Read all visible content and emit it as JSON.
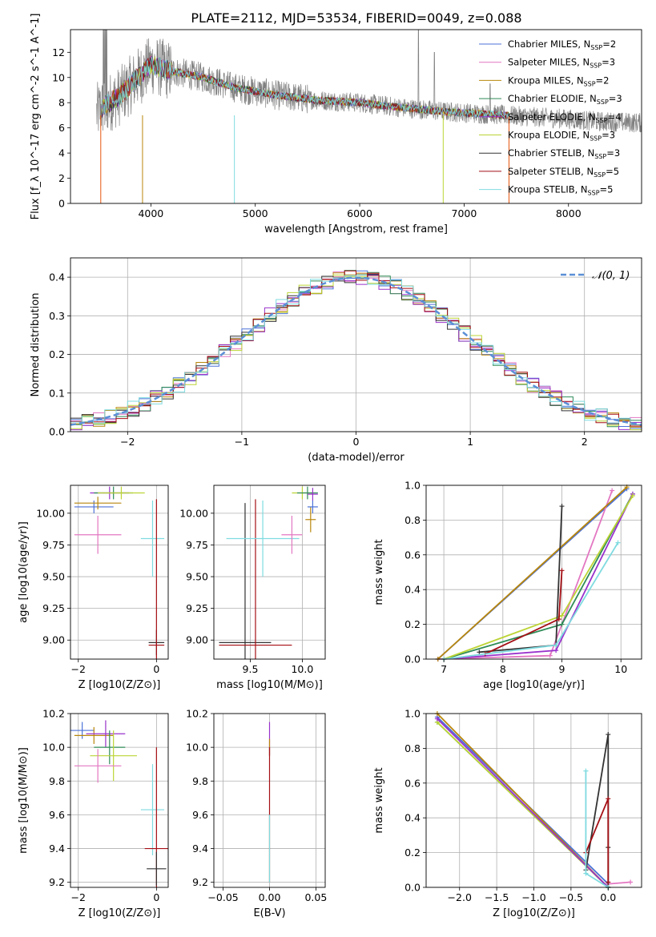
{
  "figure": {
    "title": "PLATE=2112, MJD=53534, FIBERID=0049, z=0.088"
  },
  "legend": {
    "fit_entries": [
      {
        "name": "Chabrier MILES, N",
        "sub": "SSP",
        "suffix": "=2",
        "color": "#4c72d8"
      },
      {
        "name": "Salpeter MILES, N",
        "sub": "SSP",
        "suffix": "=3",
        "color": "#e377c2"
      },
      {
        "name": "Kroupa MILES, N",
        "sub": "SSP",
        "suffix": "=2",
        "color": "#b8860b"
      },
      {
        "name": "Chabrier ELODIE, N",
        "sub": "SSP",
        "suffix": "=3",
        "color": "#2e8b57"
      },
      {
        "name": "Salpeter ELODIE, N",
        "sub": "SSP",
        "suffix": "=4",
        "color": "#9932cc"
      },
      {
        "name": "Kroupa ELODIE, N",
        "sub": "SSP",
        "suffix": "=3",
        "color": "#bcd435"
      },
      {
        "name": "Chabrier STELIB, N",
        "sub": "SSP",
        "suffix": "=3",
        "color": "#333333"
      },
      {
        "name": "Salpeter STELIB, N",
        "sub": "SSP",
        "suffix": "=5",
        "color": "#a50f15"
      },
      {
        "name": "Kroupa STELIB, N",
        "sub": "SSP",
        "suffix": "=5",
        "color": "#7fdbe0"
      }
    ],
    "normal_label": "𝒩(0, 1)"
  },
  "chart_data": [
    {
      "id": "spectrum",
      "type": "line",
      "title": "PLATE=2112, MJD=53534, FIBERID=0049, z=0.088",
      "xlabel": "wavelength [Angstrom, rest frame]",
      "ylabel": "Flux [f_λ 10^-17 erg cm^-2 s^-1 A^-1]",
      "xlim": [
        3230,
        8700
      ],
      "ylim": [
        0,
        13.8
      ],
      "xticks": [
        4000,
        5000,
        6000,
        7000,
        8000
      ],
      "yticks": [
        0,
        2,
        4,
        6,
        8,
        10,
        12
      ],
      "data_color": "#808080",
      "continuum": [
        [
          3480,
          7.2
        ],
        [
          3560,
          7.8
        ],
        [
          3700,
          8.5
        ],
        [
          3850,
          9.8
        ],
        [
          4000,
          11.0
        ],
        [
          4200,
          10.5
        ],
        [
          4500,
          10.0
        ],
        [
          4800,
          9.2
        ],
        [
          5200,
          8.6
        ],
        [
          5600,
          8.2
        ],
        [
          6000,
          8.0
        ],
        [
          6400,
          7.6
        ],
        [
          6800,
          7.3
        ],
        [
          7200,
          7.1
        ],
        [
          7600,
          6.9
        ],
        [
          8000,
          6.7
        ],
        [
          8300,
          6.5
        ],
        [
          8700,
          6.4
        ]
      ],
      "model_x_range": [
        3530,
        7430
      ],
      "legend": "upper right",
      "grid": false
    },
    {
      "id": "residuals",
      "type": "step",
      "xlabel": "(data-model)/error",
      "ylabel": "Normed distribution",
      "xlim": [
        -2.5,
        2.5
      ],
      "ylim": [
        0,
        0.45
      ],
      "xticks": [
        -2,
        -1,
        0,
        1,
        2
      ],
      "yticks": [
        0.0,
        0.1,
        0.2,
        0.3,
        0.4
      ],
      "n_bins": 50,
      "normal": {
        "mean": 0,
        "sigma": 1,
        "color": "#5b8fd6",
        "label": "𝒩(0, 1)"
      },
      "grid": true
    },
    {
      "id": "age_vs_Z",
      "type": "errorbar",
      "xlabel": "Z [log10(Z/Z⊙)]",
      "ylabel": "age [log10(age/yr)]",
      "xlim": [
        -2.2,
        0.3
      ],
      "ylim": [
        8.85,
        10.22
      ],
      "xticks": [
        -2,
        0
      ],
      "yticks": [
        9.0,
        9.25,
        9.5,
        9.75,
        10.0
      ],
      "points": [
        {
          "series": 0,
          "x": -1.6,
          "y": 10.05,
          "xerr": 0.5,
          "yerr": 0.05
        },
        {
          "series": 2,
          "x": -1.5,
          "y": 10.08,
          "xerr": 0.6,
          "yerr": 0.05
        },
        {
          "series": 1,
          "x": -1.5,
          "y": 9.83,
          "xerr": 0.6,
          "yerr": 0.15
        },
        {
          "series": 4,
          "x": -1.2,
          "y": 10.16,
          "xerr": 0.5,
          "yerr": 0.05
        },
        {
          "series": 3,
          "x": -1.1,
          "y": 10.16,
          "xerr": 0.5,
          "yerr": 0.05
        },
        {
          "series": 5,
          "x": -0.9,
          "y": 10.16,
          "xerr": 0.6,
          "yerr": 0.05
        },
        {
          "series": 8,
          "x": -0.1,
          "y": 9.8,
          "xerr": 0.3,
          "yerr": 0.3
        },
        {
          "series": 6,
          "x": 0.0,
          "y": 8.98,
          "xerr": 0.2,
          "yerr": 0.1
        },
        {
          "series": 7,
          "x": 0.0,
          "y": 8.96,
          "xerr": 0.2,
          "yerr": 1.15
        }
      ],
      "grid": true
    },
    {
      "id": "age_vs_mass",
      "type": "errorbar",
      "xlabel": "mass [log10(M/M⊙)]",
      "ylabel": "",
      "xlim": [
        9.15,
        10.22
      ],
      "ylim": [
        8.85,
        10.22
      ],
      "xticks": [
        9.5,
        10.0
      ],
      "yticks": [
        9.0,
        9.25,
        9.5,
        9.75,
        10.0
      ],
      "points": [
        {
          "series": 6,
          "x": 9.45,
          "y": 8.98,
          "xerr": 0.25,
          "yerr": 1.1
        },
        {
          "series": 7,
          "x": 9.55,
          "y": 8.96,
          "xerr": 0.35,
          "yerr": 1.15
        },
        {
          "series": 8,
          "x": 9.62,
          "y": 9.8,
          "xerr": 0.35,
          "yerr": 0.3
        },
        {
          "series": 1,
          "x": 9.9,
          "y": 9.83,
          "xerr": 0.1,
          "yerr": 0.15
        },
        {
          "series": 2,
          "x": 10.08,
          "y": 9.95,
          "xerr": 0.05,
          "yerr": 0.1
        },
        {
          "series": 5,
          "x": 10.0,
          "y": 10.16,
          "xerr": 0.1,
          "yerr": 0.05
        },
        {
          "series": 3,
          "x": 10.05,
          "y": 10.16,
          "xerr": 0.1,
          "yerr": 0.05
        },
        {
          "series": 0,
          "x": 10.1,
          "y": 10.05,
          "xerr": 0.05,
          "yerr": 0.05
        },
        {
          "series": 4,
          "x": 10.1,
          "y": 10.15,
          "xerr": 0.05,
          "yerr": 0.05
        }
      ],
      "grid": true
    },
    {
      "id": "weight_vs_age",
      "type": "line",
      "xlabel": "age [log10(age/yr)]",
      "ylabel": "mass weight",
      "xlim": [
        6.7,
        10.35
      ],
      "ylim": [
        0,
        1.0
      ],
      "xticks": [
        7,
        8,
        9,
        10
      ],
      "yticks": [
        0.0,
        0.2,
        0.4,
        0.6,
        0.8,
        1.0
      ],
      "series": [
        {
          "series": 0,
          "points": [
            [
              6.9,
              0.0
            ],
            [
              10.1,
              0.98
            ]
          ]
        },
        {
          "series": 1,
          "points": [
            [
              6.9,
              0.0
            ],
            [
              8.8,
              0.02
            ],
            [
              9.85,
              0.97
            ]
          ]
        },
        {
          "series": 2,
          "points": [
            [
              6.9,
              0.0
            ],
            [
              10.1,
              0.99
            ]
          ]
        },
        {
          "series": 3,
          "points": [
            [
              7.0,
              0.0
            ],
            [
              9.0,
              0.2
            ],
            [
              10.2,
              0.95
            ]
          ]
        },
        {
          "series": 4,
          "points": [
            [
              7.0,
              0.0
            ],
            [
              8.9,
              0.05
            ],
            [
              10.2,
              0.95
            ]
          ]
        },
        {
          "series": 5,
          "points": [
            [
              7.0,
              0.0
            ],
            [
              9.0,
              0.25
            ],
            [
              10.2,
              0.94
            ]
          ]
        },
        {
          "series": 6,
          "points": [
            [
              7.6,
              0.04
            ],
            [
              8.9,
              0.08
            ],
            [
              9.0,
              0.88
            ]
          ]
        },
        {
          "series": 7,
          "points": [
            [
              7.7,
              0.03
            ],
            [
              8.95,
              0.23
            ],
            [
              9.0,
              0.51
            ]
          ]
        },
        {
          "series": 8,
          "points": [
            [
              7.0,
              0.0
            ],
            [
              8.9,
              0.08
            ],
            [
              9.95,
              0.67
            ]
          ]
        }
      ],
      "grid": true
    },
    {
      "id": "mass_vs_Z",
      "type": "errorbar",
      "xlabel": "Z [log10(Z/Z⊙)]",
      "ylabel": "mass [log10(M/M⊙)]",
      "xlim": [
        -2.2,
        0.3
      ],
      "ylim": [
        9.17,
        10.2
      ],
      "xticks": [
        -2,
        0
      ],
      "yticks": [
        9.2,
        9.4,
        9.6,
        9.8,
        10.0,
        10.2
      ],
      "points": [
        {
          "series": 0,
          "x": -1.9,
          "y": 10.1,
          "xerr": 0.3,
          "yerr": 0.05
        },
        {
          "series": 2,
          "x": -1.6,
          "y": 10.07,
          "xerr": 0.5,
          "yerr": 0.05
        },
        {
          "series": 4,
          "x": -1.3,
          "y": 10.08,
          "xerr": 0.5,
          "yerr": 0.08
        },
        {
          "series": 3,
          "x": -1.2,
          "y": 10.0,
          "xerr": 0.4,
          "yerr": 0.1
        },
        {
          "series": 5,
          "x": -1.1,
          "y": 9.95,
          "xerr": 0.6,
          "yerr": 0.15
        },
        {
          "series": 1,
          "x": -1.5,
          "y": 9.89,
          "xerr": 0.6,
          "yerr": 0.1
        },
        {
          "series": 8,
          "x": -0.1,
          "y": 9.63,
          "xerr": 0.3,
          "yerr": 0.27
        },
        {
          "series": 7,
          "x": 0.0,
          "y": 9.4,
          "xerr": 0.3,
          "yerr": 0.6
        },
        {
          "series": 6,
          "x": 0.0,
          "y": 9.28,
          "xerr": 0.25,
          "yerr": 0.1
        }
      ],
      "grid": true
    },
    {
      "id": "mass_vs_ebv",
      "type": "errorbar",
      "xlabel": "E(B-V)",
      "ylabel": "",
      "xlim": [
        -0.06,
        0.06
      ],
      "ylim": [
        9.17,
        10.2
      ],
      "xticks": [
        -0.05,
        0.0,
        0.05
      ],
      "yticks": [
        9.2,
        9.4,
        9.6,
        9.8,
        10.0,
        10.2
      ],
      "points": [
        {
          "series": 4,
          "x": 0.0,
          "y": 10.05,
          "xerr": 0.0,
          "yerr": 0.1
        },
        {
          "series": 2,
          "x": 0.0,
          "y": 10.0,
          "xerr": 0.0,
          "yerr": 0.05
        },
        {
          "series": 7,
          "x": 0.0,
          "y": 9.6,
          "xerr": 0.0,
          "yerr": 0.4
        },
        {
          "series": 8,
          "x": 0.0,
          "y": 9.4,
          "xerr": 0.0,
          "yerr": 0.2
        }
      ],
      "grid": true
    },
    {
      "id": "weight_vs_Z",
      "type": "line",
      "xlabel": "Z [log10(Z/Z⊙)]",
      "ylabel": "mass weight",
      "xlim": [
        -2.45,
        0.45
      ],
      "ylim": [
        0,
        1.0
      ],
      "xticks": [
        -2.0,
        -1.5,
        -1.0,
        -0.5,
        0.0
      ],
      "yticks": [
        0.0,
        0.2,
        0.4,
        0.6,
        0.8,
        1.0
      ],
      "series": [
        {
          "series": 0,
          "points": [
            [
              -2.3,
              0.98
            ],
            [
              0.0,
              0.02
            ]
          ]
        },
        {
          "series": 2,
          "points": [
            [
              -2.3,
              1.0
            ],
            [
              0.0,
              0.0
            ]
          ]
        },
        {
          "series": 1,
          "points": [
            [
              0.0,
              0.02
            ],
            [
              0.3,
              0.03
            ]
          ]
        },
        {
          "series": 3,
          "points": [
            [
              -2.3,
              0.95
            ],
            [
              0.0,
              0.0
            ]
          ]
        },
        {
          "series": 5,
          "points": [
            [
              -2.3,
              0.95
            ],
            [
              0.0,
              0.0
            ]
          ]
        },
        {
          "series": 4,
          "points": [
            [
              -2.3,
              0.97
            ],
            [
              0.0,
              0.0
            ]
          ]
        },
        {
          "series": 6,
          "points": [
            [
              -0.3,
              0.1
            ],
            [
              0.0,
              0.88
            ],
            [
              0.0,
              0.23
            ],
            [
              0.0,
              0.0
            ]
          ]
        },
        {
          "series": 7,
          "points": [
            [
              -0.3,
              0.2
            ],
            [
              0.0,
              0.51
            ],
            [
              0.0,
              0.03
            ]
          ]
        },
        {
          "series": 8,
          "points": [
            [
              -0.3,
              0.67
            ],
            [
              -0.3,
              0.08
            ],
            [
              0.0,
              0.0
            ]
          ]
        }
      ],
      "grid": true
    }
  ]
}
